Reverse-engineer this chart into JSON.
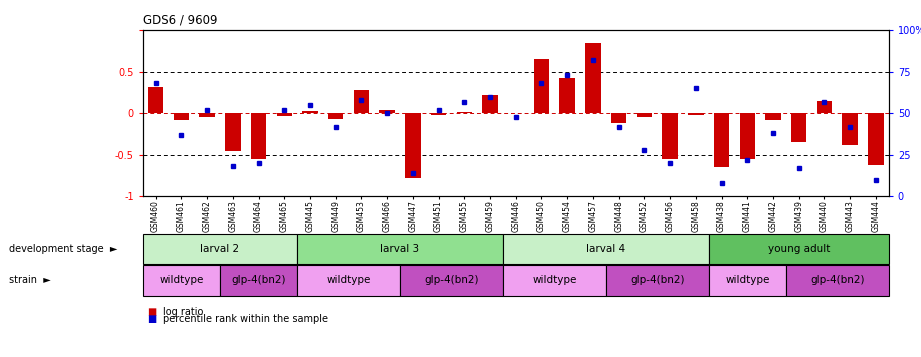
{
  "title": "GDS6 / 9609",
  "samples": [
    "GSM460",
    "GSM461",
    "GSM462",
    "GSM463",
    "GSM464",
    "GSM465",
    "GSM445",
    "GSM449",
    "GSM453",
    "GSM466",
    "GSM447",
    "GSM451",
    "GSM455",
    "GSM459",
    "GSM446",
    "GSM450",
    "GSM454",
    "GSM457",
    "GSM448",
    "GSM452",
    "GSM456",
    "GSM458",
    "GSM438",
    "GSM441",
    "GSM442",
    "GSM439",
    "GSM440",
    "GSM443",
    "GSM444"
  ],
  "log_ratio": [
    0.32,
    -0.08,
    -0.05,
    -0.45,
    -0.55,
    -0.03,
    0.03,
    -0.07,
    0.28,
    0.04,
    -0.78,
    -0.02,
    0.02,
    0.22,
    0.0,
    0.65,
    0.42,
    0.85,
    -0.12,
    -0.04,
    -0.55,
    -0.02,
    -0.65,
    -0.55,
    -0.08,
    -0.35,
    0.15,
    -0.38,
    -0.62
  ],
  "percentile": [
    68,
    37,
    52,
    18,
    20,
    52,
    55,
    42,
    58,
    50,
    14,
    52,
    57,
    60,
    48,
    68,
    73,
    82,
    42,
    28,
    20,
    65,
    8,
    22,
    38,
    17,
    57,
    42,
    10
  ],
  "dev_stages": [
    {
      "label": "larval 2",
      "start": 0,
      "end": 6,
      "color": "#c8f0c8"
    },
    {
      "label": "larval 3",
      "start": 6,
      "end": 14,
      "color": "#90e090"
    },
    {
      "label": "larval 4",
      "start": 14,
      "end": 22,
      "color": "#c8f0c8"
    },
    {
      "label": "young adult",
      "start": 22,
      "end": 29,
      "color": "#60c060"
    }
  ],
  "strains": [
    {
      "label": "wildtype",
      "start": 0,
      "end": 3,
      "color": "#f0a0f0"
    },
    {
      "label": "glp-4(bn2)",
      "start": 3,
      "end": 6,
      "color": "#c050c0"
    },
    {
      "label": "wildtype",
      "start": 6,
      "end": 10,
      "color": "#f0a0f0"
    },
    {
      "label": "glp-4(bn2)",
      "start": 10,
      "end": 14,
      "color": "#c050c0"
    },
    {
      "label": "wildtype",
      "start": 14,
      "end": 18,
      "color": "#f0a0f0"
    },
    {
      "label": "glp-4(bn2)",
      "start": 18,
      "end": 22,
      "color": "#c050c0"
    },
    {
      "label": "wildtype",
      "start": 22,
      "end": 25,
      "color": "#f0a0f0"
    },
    {
      "label": "glp-4(bn2)",
      "start": 25,
      "end": 29,
      "color": "#c050c0"
    }
  ],
  "ylim_left": [
    -1.0,
    1.0
  ],
  "ylim_right": [
    0,
    100
  ],
  "bar_color": "#cc0000",
  "dot_color": "#0000cc",
  "zero_line_color": "#cc0000"
}
